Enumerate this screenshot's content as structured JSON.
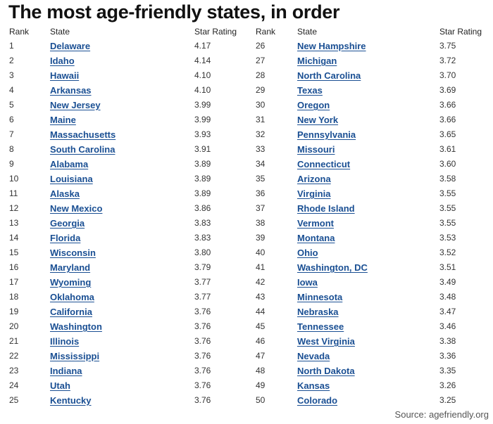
{
  "title": "The most age-friendly states, in order",
  "headers": {
    "rank": "Rank",
    "state": "State",
    "rating": "Star Rating"
  },
  "link_color": "#1a4f93",
  "left_rows": [
    {
      "rank": "1",
      "state": "Delaware",
      "rating": "4.17"
    },
    {
      "rank": "2",
      "state": "Idaho",
      "rating": "4.14"
    },
    {
      "rank": "3",
      "state": "Hawaii",
      "rating": "4.10"
    },
    {
      "rank": "4",
      "state": "Arkansas",
      "rating": "4.10"
    },
    {
      "rank": "5",
      "state": "New Jersey",
      "rating": "3.99"
    },
    {
      "rank": "6",
      "state": "Maine",
      "rating": "3.99"
    },
    {
      "rank": "7",
      "state": "Massachusetts",
      "rating": "3.93"
    },
    {
      "rank": "8",
      "state": "South Carolina",
      "rating": "3.91"
    },
    {
      "rank": "9",
      "state": "Alabama",
      "rating": "3.89"
    },
    {
      "rank": "10",
      "state": "Louisiana",
      "rating": "3.89"
    },
    {
      "rank": "11",
      "state": "Alaska",
      "rating": "3.89"
    },
    {
      "rank": "12",
      "state": "New Mexico",
      "rating": "3.86"
    },
    {
      "rank": "13",
      "state": "Georgia",
      "rating": "3.83"
    },
    {
      "rank": "14",
      "state": "Florida",
      "rating": "3.83"
    },
    {
      "rank": "15",
      "state": "Wisconsin",
      "rating": "3.80"
    },
    {
      "rank": "16",
      "state": "Maryland",
      "rating": "3.79"
    },
    {
      "rank": "17",
      "state": "Wyoming",
      "rating": "3.77"
    },
    {
      "rank": "18",
      "state": "Oklahoma",
      "rating": "3.77"
    },
    {
      "rank": "19",
      "state": "California",
      "rating": "3.76"
    },
    {
      "rank": "20",
      "state": "Washington",
      "rating": "3.76"
    },
    {
      "rank": "21",
      "state": "Illinois",
      "rating": "3.76"
    },
    {
      "rank": "22",
      "state": "Mississippi",
      "rating": "3.76"
    },
    {
      "rank": "23",
      "state": "Indiana",
      "rating": "3.76"
    },
    {
      "rank": "24",
      "state": "Utah",
      "rating": "3.76"
    },
    {
      "rank": "25",
      "state": "Kentucky",
      "rating": "3.76"
    }
  ],
  "right_rows": [
    {
      "rank": "26",
      "state": "New Hampshire",
      "rating": "3.75"
    },
    {
      "rank": "27",
      "state": "Michigan",
      "rating": "3.72"
    },
    {
      "rank": "28",
      "state": "North Carolina",
      "rating": "3.70"
    },
    {
      "rank": "29",
      "state": "Texas",
      "rating": "3.69"
    },
    {
      "rank": "30",
      "state": "Oregon",
      "rating": "3.66"
    },
    {
      "rank": "31",
      "state": "New York",
      "rating": "3.66"
    },
    {
      "rank": "32",
      "state": "Pennsylvania",
      "rating": "3.65"
    },
    {
      "rank": "33",
      "state": "Missouri",
      "rating": "3.61"
    },
    {
      "rank": "34",
      "state": "Connecticut",
      "rating": "3.60"
    },
    {
      "rank": "35",
      "state": "Arizona",
      "rating": "3.58"
    },
    {
      "rank": "36",
      "state": "Virginia",
      "rating": "3.55"
    },
    {
      "rank": "37",
      "state": "Rhode Island",
      "rating": "3.55"
    },
    {
      "rank": "38",
      "state": "Vermont",
      "rating": "3.55"
    },
    {
      "rank": "39",
      "state": "Montana",
      "rating": "3.53"
    },
    {
      "rank": "40",
      "state": "Ohio",
      "rating": "3.52"
    },
    {
      "rank": "41",
      "state": "Washington, DC",
      "rating": "3.51"
    },
    {
      "rank": "42",
      "state": "Iowa",
      "rating": "3.49"
    },
    {
      "rank": "43",
      "state": "Minnesota",
      "rating": "3.48"
    },
    {
      "rank": "44",
      "state": "Nebraska",
      "rating": "3.47"
    },
    {
      "rank": "45",
      "state": "Tennessee",
      "rating": "3.46"
    },
    {
      "rank": "46",
      "state": "West Virginia",
      "rating": "3.38"
    },
    {
      "rank": "47",
      "state": "Nevada",
      "rating": "3.36"
    },
    {
      "rank": "48",
      "state": "North Dakota",
      "rating": "3.35"
    },
    {
      "rank": "49",
      "state": "Kansas",
      "rating": "3.26"
    },
    {
      "rank": "50",
      "state": "Colorado",
      "rating": "3.25"
    }
  ],
  "source": "Source: agefriendly.org"
}
